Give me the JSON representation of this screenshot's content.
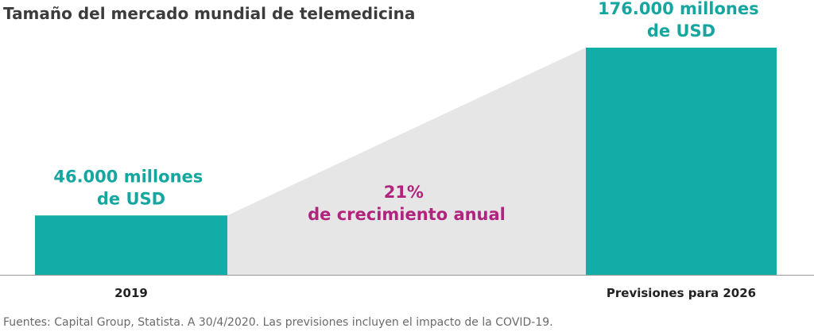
{
  "colors": {
    "bar": "#12ada7",
    "value_label": "#16a6a0",
    "growth_label": "#b0247e",
    "growth_wedge": "#e6e6e6",
    "baseline": "#9a9a9a"
  },
  "chart_data": {
    "type": "bar",
    "title": "Tamaño del mercado mundial de telemedicina",
    "categories": [
      "2019",
      "Previsiones para 2026"
    ],
    "values": [
      46000,
      176000
    ],
    "unit": "millones de USD",
    "ylim": [
      0,
      176000
    ],
    "grid": false,
    "legend": "none",
    "data_labels": [
      [
        "46.000 millones",
        "de USD"
      ],
      [
        "176.000 millones",
        "de USD"
      ]
    ],
    "annotation": {
      "line1": "21%",
      "line2": "de crecimiento anual"
    },
    "source": "Fuentes: Capital Group, Statista. A 30/4/2020. Las previsiones incluyen el impacto de la COVID-19."
  }
}
